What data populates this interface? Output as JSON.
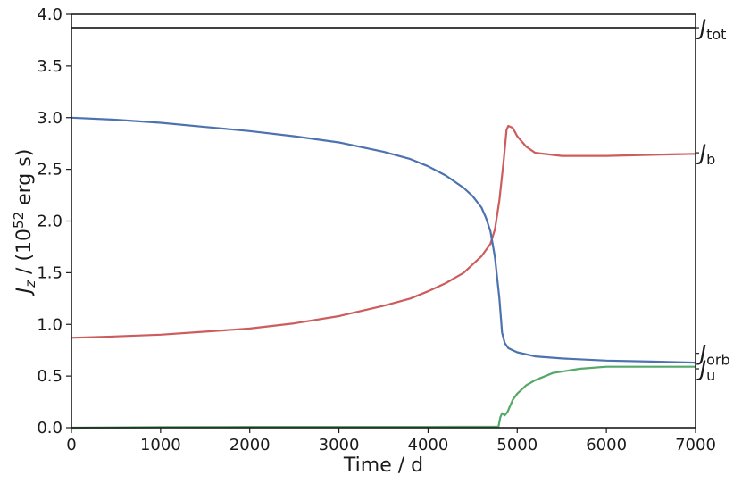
{
  "chart_data": {
    "type": "line",
    "xlabel": "Time / d",
    "ylabel_parts": {
      "main": "J",
      "sub": "z",
      "mid": " / (10",
      "sup": "52",
      "end": " erg s)"
    },
    "xlim": [
      0,
      7000
    ],
    "ylim": [
      0.0,
      4.0
    ],
    "xticks": [
      "0",
      "1000",
      "2000",
      "3000",
      "4000",
      "5000",
      "6000",
      "7000"
    ],
    "yticks": [
      "0.0",
      "0.5",
      "1.0",
      "1.5",
      "2.0",
      "2.5",
      "3.0",
      "3.5",
      "4.0"
    ],
    "grid": false,
    "series": [
      {
        "name": "tot",
        "color": "#000000",
        "x": [
          0,
          7000
        ],
        "y": [
          3.87,
          3.87
        ]
      },
      {
        "name": "b",
        "color": "#cd5c5c",
        "x": [
          0,
          400,
          1000,
          1500,
          2000,
          2500,
          3000,
          3500,
          3800,
          4000,
          4200,
          4400,
          4500,
          4600,
          4700,
          4750,
          4800,
          4850,
          4880,
          4900,
          4950,
          5000,
          5100,
          5200,
          5500,
          6000,
          6500,
          7000
        ],
        "y": [
          0.87,
          0.88,
          0.9,
          0.93,
          0.96,
          1.01,
          1.08,
          1.18,
          1.25,
          1.32,
          1.4,
          1.5,
          1.58,
          1.66,
          1.78,
          1.92,
          2.2,
          2.6,
          2.88,
          2.92,
          2.9,
          2.82,
          2.72,
          2.66,
          2.63,
          2.63,
          2.64,
          2.65
        ]
      },
      {
        "name": "orb",
        "color": "#4c72b0",
        "x": [
          0,
          500,
          1000,
          1500,
          2000,
          2500,
          3000,
          3500,
          3800,
          4000,
          4200,
          4400,
          4500,
          4600,
          4650,
          4700,
          4750,
          4800,
          4830,
          4860,
          4900,
          4950,
          5000,
          5200,
          5500,
          6000,
          6500,
          7000
        ],
        "y": [
          3.0,
          2.98,
          2.95,
          2.91,
          2.87,
          2.82,
          2.76,
          2.67,
          2.6,
          2.53,
          2.44,
          2.32,
          2.24,
          2.13,
          2.03,
          1.9,
          1.65,
          1.25,
          0.92,
          0.82,
          0.77,
          0.75,
          0.73,
          0.69,
          0.67,
          0.65,
          0.64,
          0.63
        ]
      },
      {
        "name": "u",
        "color": "#55a868",
        "x": [
          0,
          1000,
          2000,
          3000,
          4000,
          4790,
          4810,
          4830,
          4860,
          4890,
          4950,
          5000,
          5100,
          5200,
          5400,
          5700,
          6000,
          6500,
          7000
        ],
        "y": [
          0.0,
          0.005,
          0.008,
          0.008,
          0.008,
          0.01,
          0.1,
          0.14,
          0.12,
          0.15,
          0.27,
          0.33,
          0.41,
          0.46,
          0.53,
          0.57,
          0.59,
          0.59,
          0.59
        ]
      }
    ],
    "labels": [
      {
        "main": "J",
        "sub": "tot",
        "y": 3.87
      },
      {
        "main": "J",
        "sub": "b",
        "y": 2.66
      },
      {
        "main": "J",
        "sub": "orb",
        "y": 0.72
      },
      {
        "main": "J",
        "sub": "u",
        "y": 0.57
      }
    ]
  }
}
